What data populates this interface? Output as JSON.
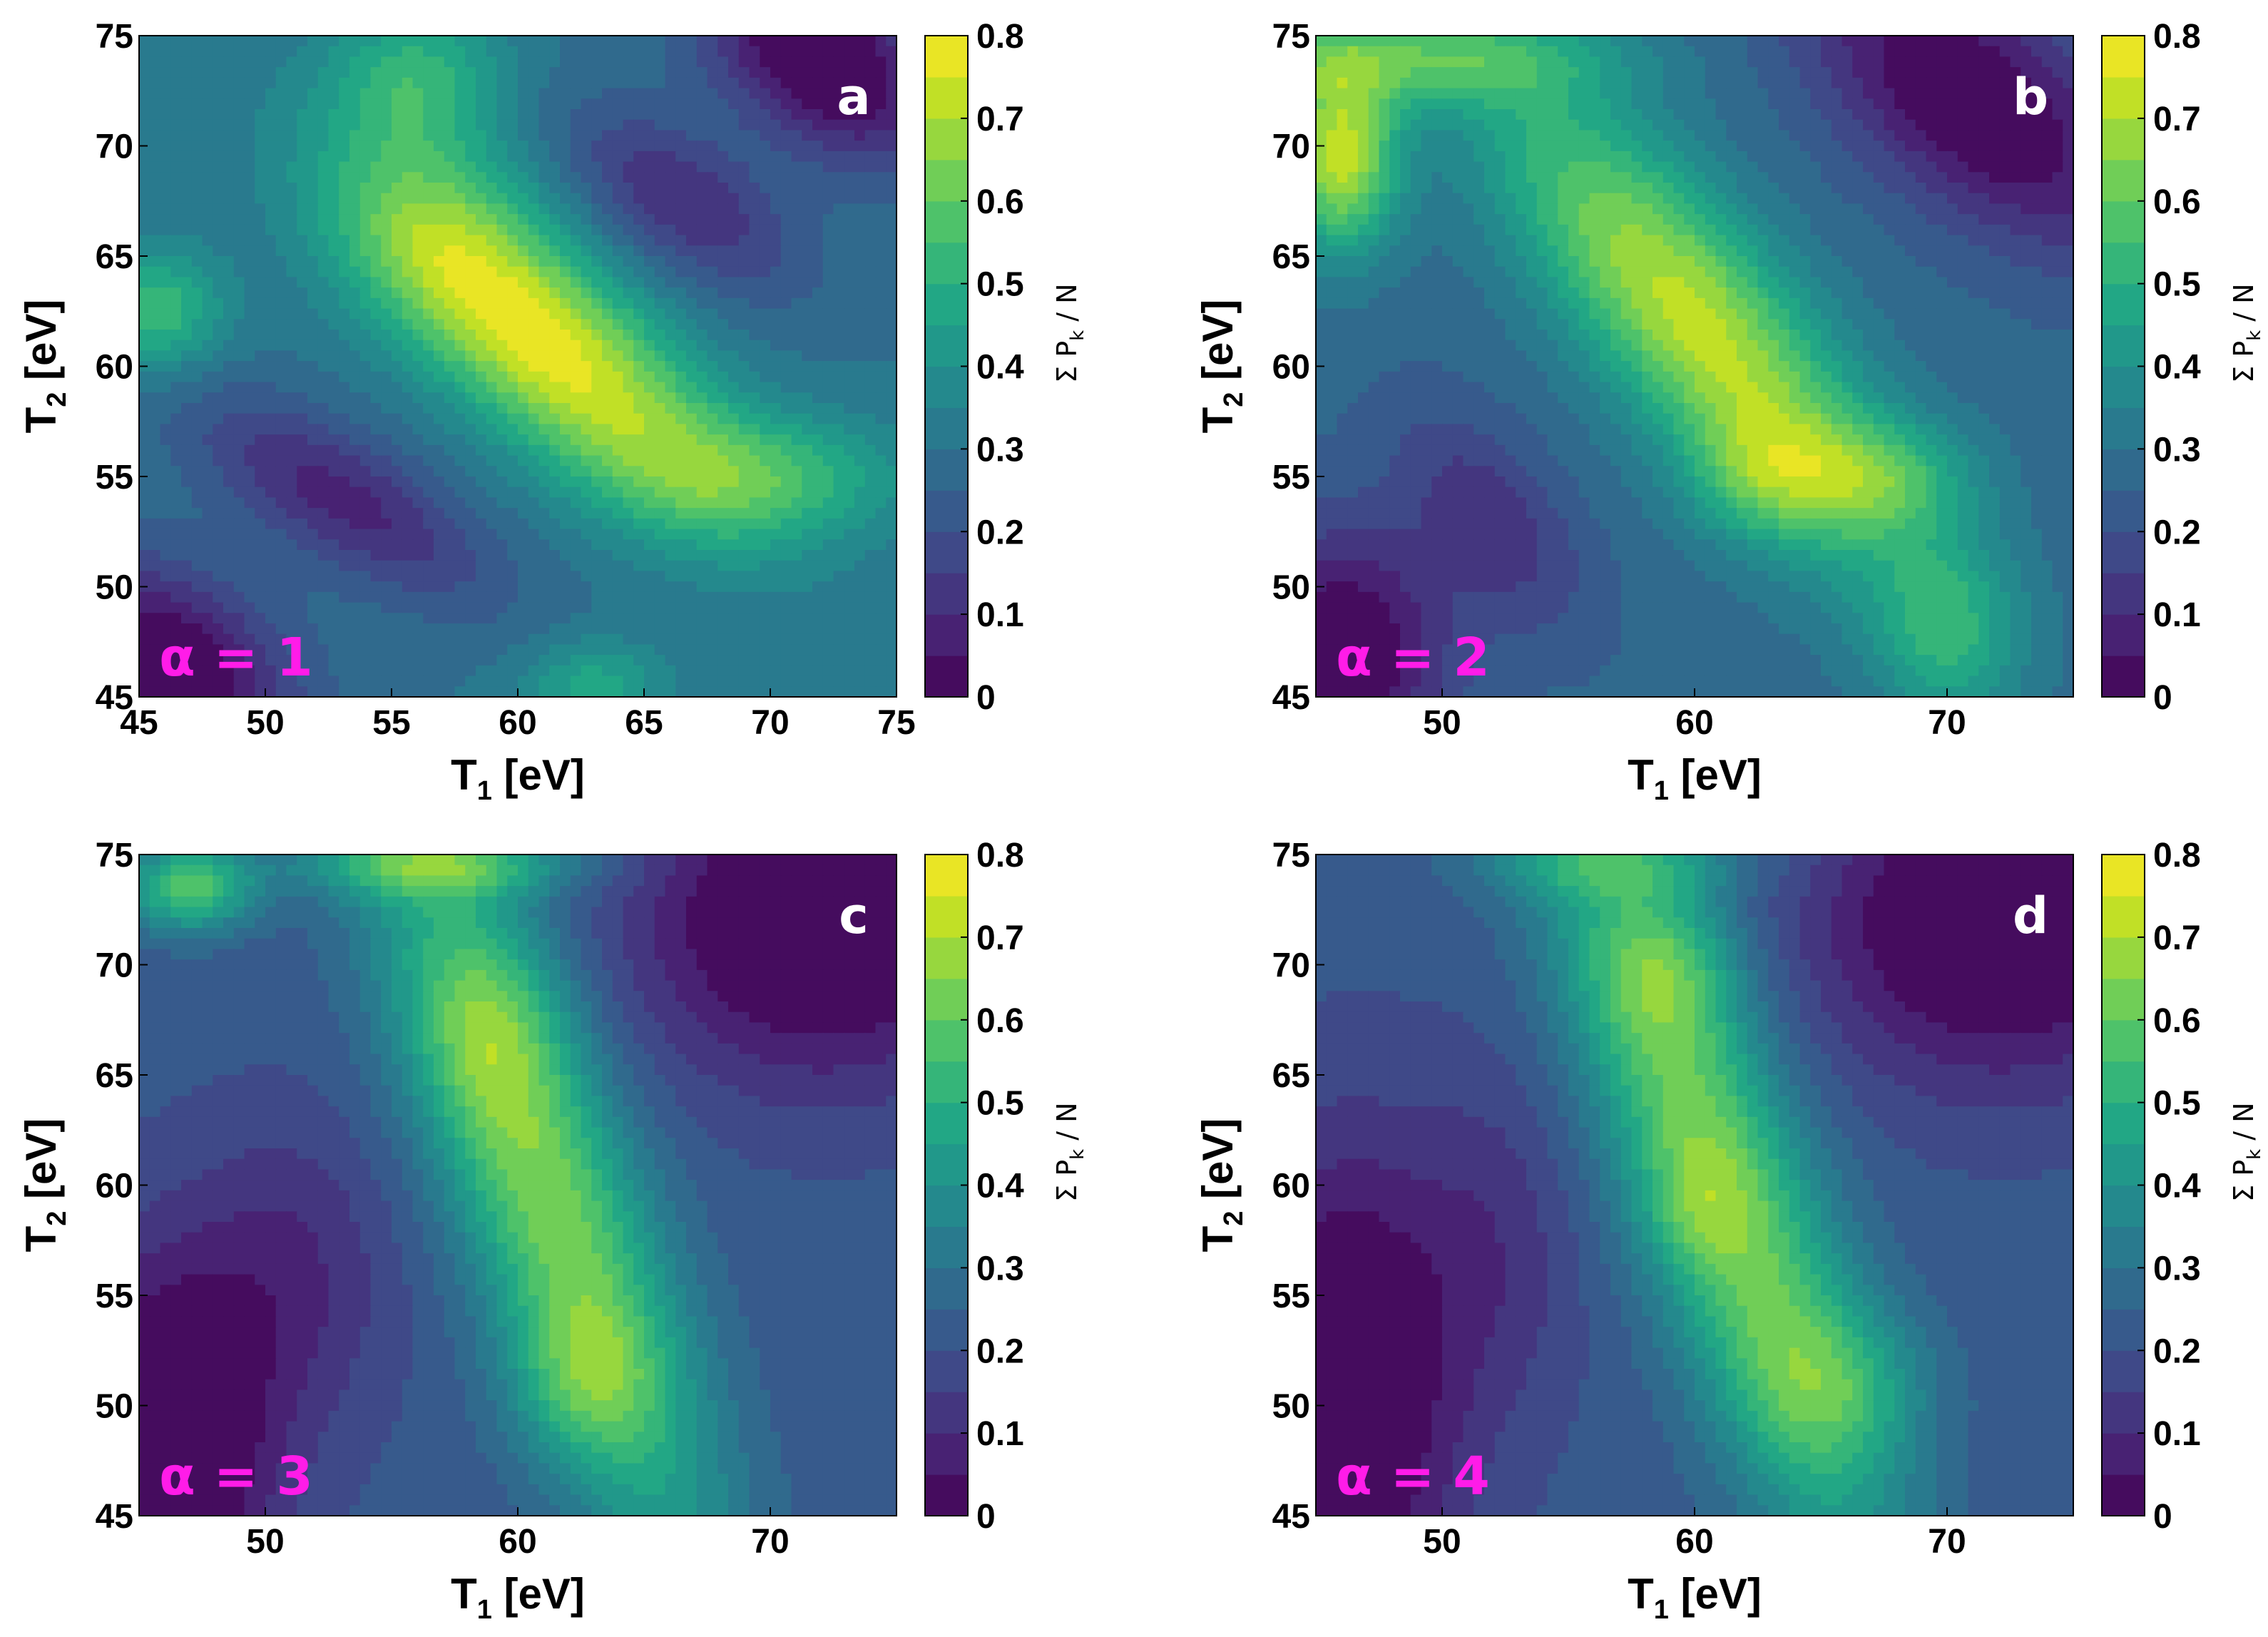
{
  "chart_data": [
    {
      "type": "heatmap",
      "panel": "a",
      "alpha_label": "α = 1",
      "xlabel": "T",
      "xlabel_sub": "1",
      "xlabel_unit": " [eV]",
      "ylabel": "T",
      "ylabel_sub": "2",
      "ylabel_unit": " [eV]",
      "xlim": [
        45,
        75
      ],
      "ylim": [
        45,
        75
      ],
      "xticks": [
        "45",
        "50",
        "55",
        "60",
        "65",
        "70",
        "75"
      ],
      "yticks": [
        "45",
        "50",
        "55",
        "60",
        "65",
        "70",
        "75"
      ],
      "colorbar": {
        "label": "Σ P",
        "label_sub": "k",
        "label_tail": " / N",
        "range": [
          0,
          0.8
        ],
        "ticks": [
          "0",
          "0.1",
          "0.2",
          "0.3",
          "0.4",
          "0.5",
          "0.6",
          "0.7",
          "0.8"
        ]
      },
      "features": [
        {
          "x": 61,
          "y": 61,
          "amp": 0.48,
          "sx": 7,
          "sy": 2.6,
          "rot": -45
        },
        {
          "x": 57,
          "y": 66.5,
          "amp": 0.12,
          "sx": 3,
          "sy": 3,
          "rot": 0
        },
        {
          "x": 56,
          "y": 73,
          "amp": 0.22,
          "sx": 2.5,
          "sy": 2.5,
          "rot": 0
        },
        {
          "x": 45.5,
          "y": 62.5,
          "amp": 0.25,
          "sx": 2,
          "sy": 2,
          "rot": 0
        },
        {
          "x": 70,
          "y": 55,
          "amp": 0.2,
          "sx": 4,
          "sy": 2,
          "rot": 0
        },
        {
          "x": 63,
          "y": 45.5,
          "amp": 0.18,
          "sx": 2,
          "sy": 1.5,
          "rot": 0
        },
        {
          "x": 53,
          "y": 54,
          "amp": -0.22,
          "sx": 5,
          "sy": 2,
          "rot": -35
        },
        {
          "x": 66.5,
          "y": 67.5,
          "amp": -0.2,
          "sx": 4,
          "sy": 2,
          "rot": -40
        },
        {
          "x": 72,
          "y": 74,
          "amp": -0.35,
          "sx": 4,
          "sy": 2.5,
          "rot": -45
        },
        {
          "x": 46,
          "y": 46,
          "amp": -0.35,
          "sx": 4,
          "sy": 3,
          "rot": -45
        }
      ],
      "base": 0.3
    },
    {
      "type": "heatmap",
      "panel": "b",
      "alpha_label": "α = 2",
      "xlabel": "T",
      "xlabel_sub": "1",
      "xlabel_unit": " [eV]",
      "ylabel": "T",
      "ylabel_sub": "2",
      "ylabel_unit": " [eV]",
      "xlim": [
        45,
        75
      ],
      "ylim": [
        45,
        75
      ],
      "xticks": [
        "50",
        "60",
        "70"
      ],
      "yticks": [
        "45",
        "50",
        "55",
        "60",
        "65",
        "70",
        "75"
      ],
      "colorbar": {
        "label": "Σ P",
        "label_sub": "k",
        "label_tail": " / N",
        "range": [
          0,
          0.8
        ],
        "ticks": [
          "0",
          "0.1",
          "0.2",
          "0.3",
          "0.4",
          "0.5",
          "0.6",
          "0.7",
          "0.8"
        ]
      },
      "features": [
        {
          "x": 60,
          "y": 62,
          "amp": 0.45,
          "sx": 9,
          "sy": 2.8,
          "rot": -55
        },
        {
          "x": 62.5,
          "y": 55,
          "amp": 0.15,
          "sx": 2,
          "sy": 2,
          "rot": 0
        },
        {
          "x": 67.5,
          "y": 55,
          "amp": 0.2,
          "sx": 2.5,
          "sy": 1.8,
          "rot": 0
        },
        {
          "x": 46,
          "y": 69.5,
          "amp": 0.45,
          "sx": 1.6,
          "sy": 3,
          "rot": 0
        },
        {
          "x": 48,
          "y": 74,
          "amp": 0.25,
          "sx": 6,
          "sy": 1.5,
          "rot": 0
        },
        {
          "x": 70,
          "y": 48,
          "amp": 0.2,
          "sx": 2,
          "sy": 3,
          "rot": 0
        },
        {
          "x": 52,
          "y": 53,
          "amp": -0.15,
          "sx": 4,
          "sy": 2,
          "rot": -60
        },
        {
          "x": 71,
          "y": 72,
          "amp": -0.3,
          "sx": 6,
          "sy": 3,
          "rot": -45
        },
        {
          "x": 46,
          "y": 47,
          "amp": -0.3,
          "sx": 3,
          "sy": 4,
          "rot": 0
        }
      ],
      "base": 0.27
    },
    {
      "type": "heatmap",
      "panel": "c",
      "alpha_label": "α = 3",
      "xlabel": "T",
      "xlabel_sub": "1",
      "xlabel_unit": " [eV]",
      "ylabel": "T",
      "ylabel_sub": "2",
      "ylabel_unit": " [eV]",
      "xlim": [
        45,
        75
      ],
      "ylim": [
        45,
        75
      ],
      "xticks": [
        "50",
        "60",
        "70"
      ],
      "yticks": [
        "45",
        "50",
        "55",
        "60",
        "65",
        "70",
        "75"
      ],
      "colorbar": {
        "label": "Σ P",
        "label_sub": "k",
        "label_tail": " / N",
        "range": [
          0,
          0.8
        ],
        "ticks": [
          "0",
          "0.1",
          "0.2",
          "0.3",
          "0.4",
          "0.5",
          "0.6",
          "0.7",
          "0.8"
        ]
      },
      "features": [
        {
          "x": 61,
          "y": 60,
          "amp": 0.42,
          "sx": 13,
          "sy": 2.6,
          "rot": -72
        },
        {
          "x": 59,
          "y": 67,
          "amp": 0.12,
          "sx": 2,
          "sy": 3,
          "rot": 0
        },
        {
          "x": 62.5,
          "y": 51,
          "amp": 0.15,
          "sx": 2,
          "sy": 2.5,
          "rot": 0
        },
        {
          "x": 47,
          "y": 73.5,
          "amp": 0.35,
          "sx": 1.8,
          "sy": 1.4,
          "rot": 0
        },
        {
          "x": 57,
          "y": 74.5,
          "amp": 0.25,
          "sx": 4,
          "sy": 1,
          "rot": 0
        },
        {
          "x": 51,
          "y": 56,
          "amp": -0.12,
          "sx": 3,
          "sy": 5,
          "rot": 0
        },
        {
          "x": 72,
          "y": 72,
          "amp": -0.3,
          "sx": 5,
          "sy": 5,
          "rot": -30
        },
        {
          "x": 46,
          "y": 48,
          "amp": -0.3,
          "sx": 3,
          "sy": 6,
          "rot": 0
        }
      ],
      "base": 0.22
    },
    {
      "type": "heatmap",
      "panel": "d",
      "alpha_label": "α = 4",
      "xlabel": "T",
      "xlabel_sub": "1",
      "xlabel_unit": " [eV]",
      "ylabel": "T",
      "ylabel_sub": "2",
      "ylabel_unit": " [eV]",
      "xlim": [
        45,
        75
      ],
      "ylim": [
        45,
        75
      ],
      "xticks": [
        "50",
        "60",
        "70"
      ],
      "yticks": [
        "45",
        "50",
        "55",
        "60",
        "65",
        "70",
        "75"
      ],
      "colorbar": {
        "label": "Σ P",
        "label_sub": "k",
        "label_tail": " / N",
        "range": [
          0,
          0.8
        ],
        "ticks": [
          "0",
          "0.1",
          "0.2",
          "0.3",
          "0.4",
          "0.5",
          "0.6",
          "0.7",
          "0.8"
        ]
      },
      "features": [
        {
          "x": 61,
          "y": 60,
          "amp": 0.42,
          "sx": 13,
          "sy": 2.6,
          "rot": -72
        },
        {
          "x": 59,
          "y": 70,
          "amp": 0.15,
          "sx": 2,
          "sy": 2.5,
          "rot": 0
        },
        {
          "x": 60,
          "y": 59,
          "amp": 0.08,
          "sx": 1.5,
          "sy": 2,
          "rot": 0
        },
        {
          "x": 66,
          "y": 51,
          "amp": 0.15,
          "sx": 2.5,
          "sy": 2.5,
          "rot": 0
        },
        {
          "x": 57,
          "y": 74.5,
          "amp": 0.15,
          "sx": 4,
          "sy": 1,
          "rot": 0
        },
        {
          "x": 52,
          "y": 57,
          "amp": -0.1,
          "sx": 2.5,
          "sy": 6,
          "rot": 0
        },
        {
          "x": 72,
          "y": 72,
          "amp": -0.3,
          "sx": 5,
          "sy": 5,
          "rot": -30
        },
        {
          "x": 46,
          "y": 50,
          "amp": -0.3,
          "sx": 3,
          "sy": 8,
          "rot": 0
        }
      ],
      "base": 0.22
    }
  ]
}
